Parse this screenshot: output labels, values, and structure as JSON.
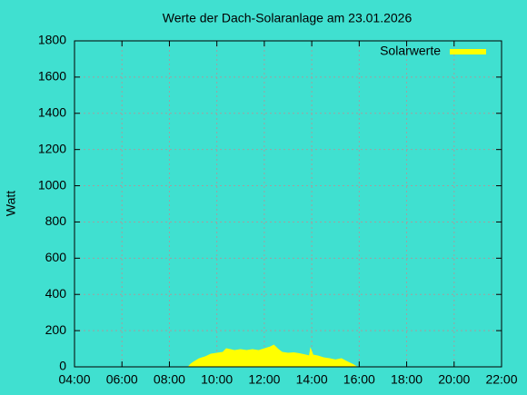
{
  "chart_data": {
    "type": "area",
    "title": "Werte der Dach-Solaranlage am 23.01.2026",
    "ylabel": "Watt",
    "x": [
      8.8,
      8.9,
      9.0,
      9.25,
      9.5,
      9.75,
      10.0,
      10.25,
      10.4,
      10.6,
      10.75,
      11.0,
      11.25,
      11.5,
      11.75,
      12.0,
      12.25,
      12.4,
      12.6,
      12.75,
      13.0,
      13.25,
      13.5,
      13.75,
      13.9,
      13.95,
      14.05,
      14.25,
      14.5,
      14.75,
      15.0,
      15.25,
      15.5,
      15.75,
      15.9
    ],
    "series": [
      {
        "name": "Solarwerte",
        "color": "#ffff00",
        "values": [
          0,
          15,
          25,
          45,
          55,
          70,
          75,
          80,
          100,
          95,
          90,
          95,
          90,
          95,
          90,
          100,
          110,
          120,
          95,
          80,
          75,
          78,
          72,
          65,
          60,
          100,
          65,
          60,
          50,
          45,
          38,
          45,
          28,
          12,
          0
        ]
      }
    ],
    "xlim": [
      4,
      22
    ],
    "xticks": [
      {
        "value": 4,
        "label": "04:00"
      },
      {
        "value": 6,
        "label": "06:00"
      },
      {
        "value": 8,
        "label": "08:00"
      },
      {
        "value": 10,
        "label": "10:00"
      },
      {
        "value": 12,
        "label": "12:00"
      },
      {
        "value": 14,
        "label": "14:00"
      },
      {
        "value": 16,
        "label": "16:00"
      },
      {
        "value": 18,
        "label": "18:00"
      },
      {
        "value": 20,
        "label": "20:00"
      },
      {
        "value": 22,
        "label": "22:00"
      }
    ],
    "ylim": [
      0,
      1800
    ],
    "yticks": [
      0,
      200,
      400,
      600,
      800,
      1000,
      1200,
      1400,
      1600,
      1800
    ],
    "grid": true,
    "legend": "top-right",
    "background": "#40e0d0"
  }
}
